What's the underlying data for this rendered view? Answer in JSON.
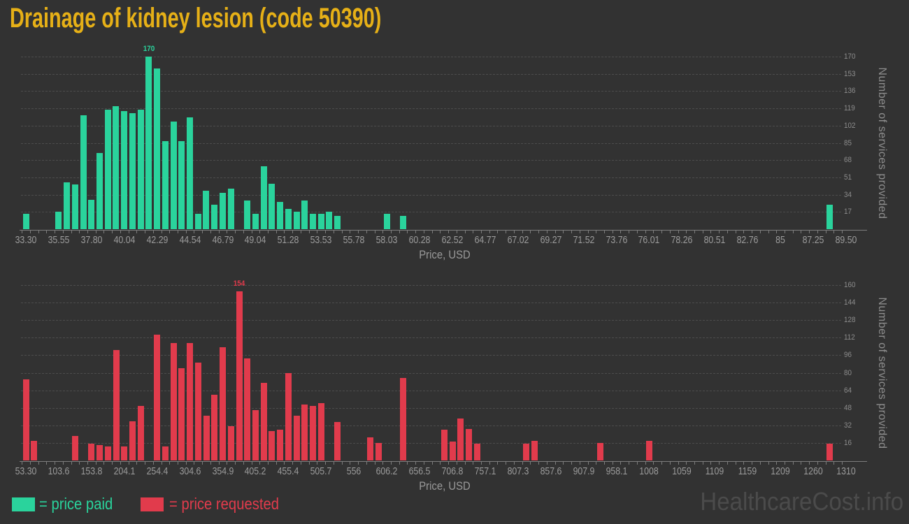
{
  "title": "Drainage of kidney lesion (code 50390)",
  "watermark": "HealthcareCost.info",
  "legend": {
    "paid": "= price paid",
    "requested": "= price requested"
  },
  "colors": {
    "background": "#323232",
    "title": "#e6b017",
    "paid": "#2ad39c",
    "requested": "#e13b4c",
    "axis_text": "#9b9b9b",
    "watermark": "#4b4b4b"
  },
  "chart_data": [
    {
      "type": "bar",
      "series_name": "price paid",
      "color": "#2ad39c",
      "xlabel": "Price, USD",
      "ylabel": "Number of services provided",
      "x_range": [
        33.3,
        89.5
      ],
      "ylim": [
        0,
        170
      ],
      "grid": true,
      "legend_position": "bottom-left",
      "peak_label": "170",
      "xtick_labels": [
        "33.30",
        "35.55",
        "37.80",
        "40.04",
        "42.29",
        "44.54",
        "46.79",
        "49.04",
        "51.28",
        "53.53",
        "55.78",
        "58.03",
        "60.28",
        "62.52",
        "64.77",
        "67.02",
        "69.27",
        "71.52",
        "73.76",
        "76.01",
        "78.26",
        "80.51",
        "82.76",
        "85",
        "87.25",
        "89.50"
      ],
      "ytick_labels": [
        17,
        34,
        51,
        68,
        85,
        102,
        119,
        136,
        153,
        170
      ],
      "bars": [
        [
          33.3,
          15
        ],
        [
          35.55,
          17
        ],
        [
          36.11,
          46
        ],
        [
          36.67,
          44
        ],
        [
          37.23,
          112
        ],
        [
          37.8,
          29
        ],
        [
          38.36,
          75
        ],
        [
          38.92,
          118
        ],
        [
          39.48,
          121
        ],
        [
          40.04,
          116
        ],
        [
          40.61,
          114
        ],
        [
          41.17,
          118
        ],
        [
          41.73,
          170
        ],
        [
          42.29,
          158
        ],
        [
          42.85,
          87
        ],
        [
          43.42,
          106
        ],
        [
          43.98,
          87
        ],
        [
          44.54,
          110
        ],
        [
          45.1,
          15
        ],
        [
          45.66,
          38
        ],
        [
          46.23,
          24
        ],
        [
          46.79,
          36
        ],
        [
          47.35,
          40
        ],
        [
          48.47,
          28
        ],
        [
          49.04,
          15
        ],
        [
          49.6,
          62
        ],
        [
          50.16,
          45
        ],
        [
          50.72,
          27
        ],
        [
          51.28,
          20
        ],
        [
          51.85,
          17
        ],
        [
          52.41,
          28
        ],
        [
          52.97,
          15
        ],
        [
          53.53,
          15
        ],
        [
          54.09,
          17
        ],
        [
          54.66,
          13
        ],
        [
          58.03,
          15
        ],
        [
          59.16,
          13
        ],
        [
          88.38,
          24
        ]
      ]
    },
    {
      "type": "bar",
      "series_name": "price requested",
      "color": "#e13b4c",
      "xlabel": "Price, USD",
      "ylabel": "Number of services provided",
      "x_range": [
        53.3,
        1310
      ],
      "ylim": [
        0,
        160
      ],
      "grid": true,
      "legend_position": "bottom-left",
      "peak_label": "154",
      "xtick_labels": [
        "53.30",
        "103.6",
        "153.8",
        "204.1",
        "254.4",
        "304.6",
        "354.9",
        "405.2",
        "455.4",
        "505.7",
        "556",
        "606.2",
        "656.5",
        "706.8",
        "757.1",
        "807.3",
        "857.6",
        "907.9",
        "958.1",
        "1008",
        "1059",
        "1109",
        "1159",
        "1209",
        "1260",
        "1310"
      ],
      "ytick_labels": [
        16,
        32,
        48,
        64,
        80,
        96,
        112,
        128,
        144,
        160
      ],
      "bars": [
        [
          53.3,
          74
        ],
        [
          65.9,
          18
        ],
        [
          128.7,
          22
        ],
        [
          153.9,
          15
        ],
        [
          166.4,
          14
        ],
        [
          179.0,
          13
        ],
        [
          191.6,
          101
        ],
        [
          204.1,
          13
        ],
        [
          216.7,
          36
        ],
        [
          229.3,
          50
        ],
        [
          254.4,
          115
        ],
        [
          267.0,
          13
        ],
        [
          279.6,
          107
        ],
        [
          292.1,
          84
        ],
        [
          304.7,
          107
        ],
        [
          317.3,
          89
        ],
        [
          329.8,
          41
        ],
        [
          342.4,
          60
        ],
        [
          355.0,
          103
        ],
        [
          367.6,
          31
        ],
        [
          380.1,
          154
        ],
        [
          392.7,
          93
        ],
        [
          405.3,
          46
        ],
        [
          417.8,
          71
        ],
        [
          430.4,
          27
        ],
        [
          443.0,
          28
        ],
        [
          455.5,
          80
        ],
        [
          468.1,
          41
        ],
        [
          480.7,
          51
        ],
        [
          493.3,
          50
        ],
        [
          505.8,
          52
        ],
        [
          531.0,
          35
        ],
        [
          581.2,
          21
        ],
        [
          593.8,
          16
        ],
        [
          631.5,
          75
        ],
        [
          694.4,
          28
        ],
        [
          706.9,
          17
        ],
        [
          719.5,
          38
        ],
        [
          732.1,
          29
        ],
        [
          744.7,
          15
        ],
        [
          820.1,
          15
        ],
        [
          832.6,
          18
        ],
        [
          933.2,
          16
        ],
        [
          1008.6,
          18
        ],
        [
          1285.2,
          15
        ]
      ]
    }
  ]
}
